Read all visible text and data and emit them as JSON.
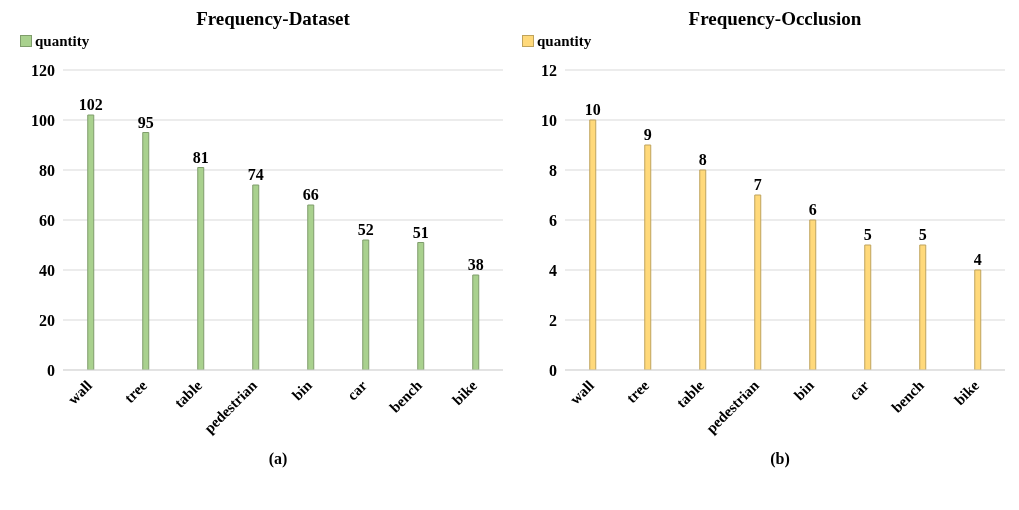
{
  "chart_data": [
    {
      "type": "bar",
      "title": "Frequency-Dataset",
      "categories": [
        "wall",
        "tree",
        "table",
        "pedestrian",
        "bin",
        "car",
        "bench",
        "bike"
      ],
      "series": [
        {
          "name": "quantity",
          "color": "#a9d18e",
          "values": [
            102,
            95,
            81,
            74,
            66,
            52,
            51,
            38
          ]
        }
      ],
      "ylim": [
        0,
        120
      ],
      "yticks": [
        0,
        20,
        40,
        60,
        80,
        100,
        120
      ],
      "grid": "y",
      "legend": "top left",
      "data_labels": true,
      "annotations": [
        "(a)"
      ]
    },
    {
      "type": "bar",
      "title": "Frequency-Occlusion",
      "categories": [
        "wall",
        "tree",
        "table",
        "pedestrian",
        "bin",
        "car",
        "bench",
        "bike"
      ],
      "series": [
        {
          "name": "quantity",
          "color": "#ffd97a",
          "values": [
            10,
            9,
            8,
            7,
            6,
            5,
            5,
            4
          ]
        }
      ],
      "ylim": [
        0,
        12
      ],
      "yticks": [
        0,
        2,
        4,
        6,
        8,
        10,
        12
      ],
      "grid": "y",
      "legend": "top left",
      "data_labels": true,
      "annotations": [
        "(b)"
      ]
    }
  ]
}
